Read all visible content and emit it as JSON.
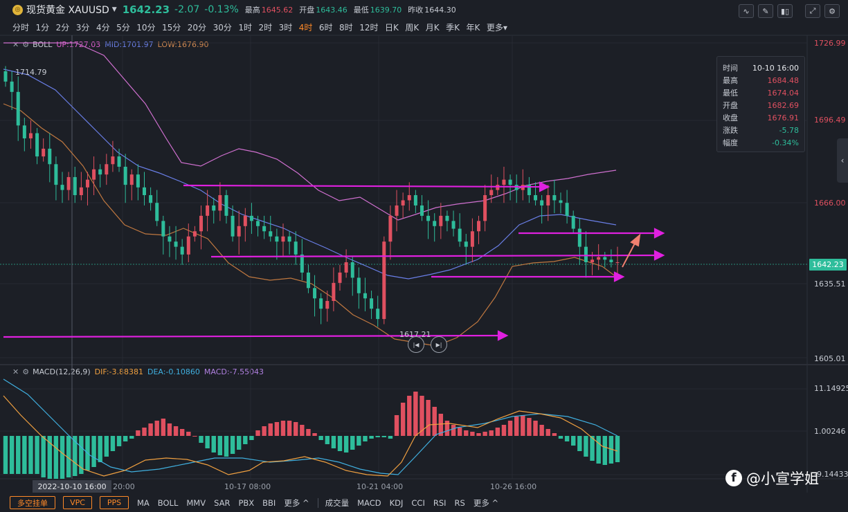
{
  "header": {
    "coin_glyph": "◎",
    "symbol": "现货黄金 XAUUSD",
    "price": "1642.23",
    "change": "-2.07",
    "change_pct": "-0.13%",
    "high_label": "最高",
    "high": "1645.62",
    "open_label": "开盘",
    "open": "1643.46",
    "low_label": "最低",
    "low": "1639.70",
    "prev_label": "昨收",
    "prev": "1644.30"
  },
  "periods": [
    "分时",
    "1分",
    "2分",
    "3分",
    "4分",
    "5分",
    "10分",
    "15分",
    "20分",
    "30分",
    "1时",
    "2时",
    "3时",
    "4时",
    "6时",
    "8时",
    "12时",
    "日K",
    "周K",
    "月K",
    "季K",
    "年K",
    "更多▾"
  ],
  "active_period": "4时",
  "boll": {
    "name": "BOLL",
    "up": "UP:1727.03",
    "mid": "MID:1701.97",
    "low": "LOW:1676.90"
  },
  "macd": {
    "name": "MACD(12,26,9)",
    "dif": "DIF:-3.88381",
    "dea": "DEA:-0.10860",
    "macd": "MACD:-7.55043"
  },
  "price_axis": [
    "1726.99",
    "1696.49",
    "1666.00",
    "1635.51",
    "1605.01"
  ],
  "macd_axis": [
    "11.14925",
    "1.00246",
    "-9.14433"
  ],
  "current_price_badge": "1642.23",
  "chart_labels": {
    "high_marker": "1714.79",
    "low_marker": "1617.21"
  },
  "time_axis": [
    "20:00",
    "10-17 08:00",
    "10-21 04:00",
    "10-26 16:00"
  ],
  "crosshair_time": "2022-10-10 16:00",
  "infobox": {
    "rows": [
      {
        "label": "时间",
        "value": "10-10 16:00",
        "color": "#e6e8ec"
      },
      {
        "label": "最高",
        "value": "1684.48",
        "color": "#e05060"
      },
      {
        "label": "最低",
        "value": "1674.04",
        "color": "#e05060"
      },
      {
        "label": "开盘",
        "value": "1682.69",
        "color": "#e05060"
      },
      {
        "label": "收盘",
        "value": "1676.91",
        "color": "#e05060"
      },
      {
        "label": "涨跌",
        "value": "-5.78",
        "color": "#2ebd9b"
      },
      {
        "label": "幅度",
        "value": "-0.34%",
        "color": "#2ebd9b"
      }
    ]
  },
  "bottom": {
    "buttons": [
      "多空挂单",
      "VPC",
      "PPS"
    ],
    "main_indicators": [
      "MA",
      "BOLL",
      "MMV",
      "SAR",
      "PBX",
      "BBI",
      "更多 ^"
    ],
    "sub_indicators": [
      "成交量",
      "MACD",
      "KDJ",
      "CCI",
      "RSI",
      "RS",
      "更多 ^"
    ]
  },
  "watermark": {
    "logo": "f",
    "text": "@小宣学姐"
  },
  "colors": {
    "up": "#e05060",
    "down": "#2ebd9b",
    "annotation": "#e020e0",
    "arrow": "#f08070",
    "mid": "#6a7fe8",
    "band": "#d070d0",
    "lower": "#c07840"
  }
}
